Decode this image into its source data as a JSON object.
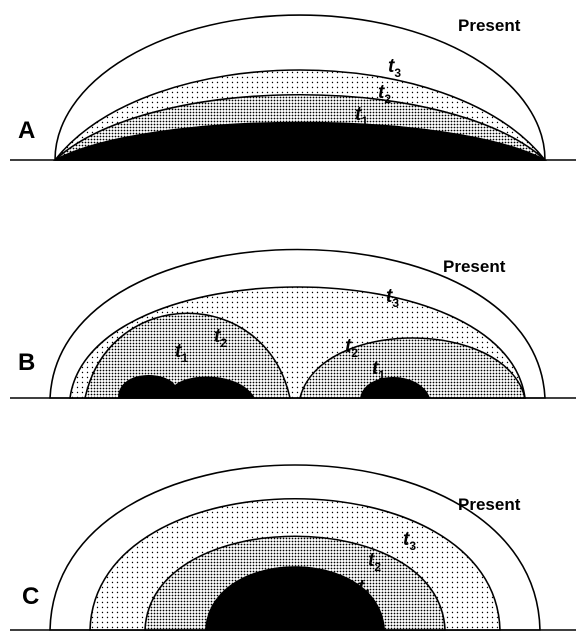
{
  "panels": [
    {
      "label": "A",
      "present": "Present",
      "t3": {
        "letter": "t",
        "index": "3"
      },
      "t2": {
        "letter": "t",
        "index": "2"
      },
      "t1": {
        "letter": "t",
        "index": "1"
      }
    },
    {
      "label": "B",
      "present": "Present",
      "t3": {
        "letter": "t",
        "index": "3"
      },
      "t2_left": {
        "letter": "t",
        "index": "2"
      },
      "t1_left": {
        "letter": "t",
        "index": "1"
      },
      "t2_right": {
        "letter": "t",
        "index": "2"
      },
      "t1_right": {
        "letter": "t",
        "index": "1"
      }
    },
    {
      "label": "C",
      "present": "Present",
      "t3": {
        "letter": "t",
        "index": "3"
      },
      "t2": {
        "letter": "t",
        "index": "2"
      },
      "t1": {
        "letter": "t",
        "index": "1"
      }
    }
  ]
}
